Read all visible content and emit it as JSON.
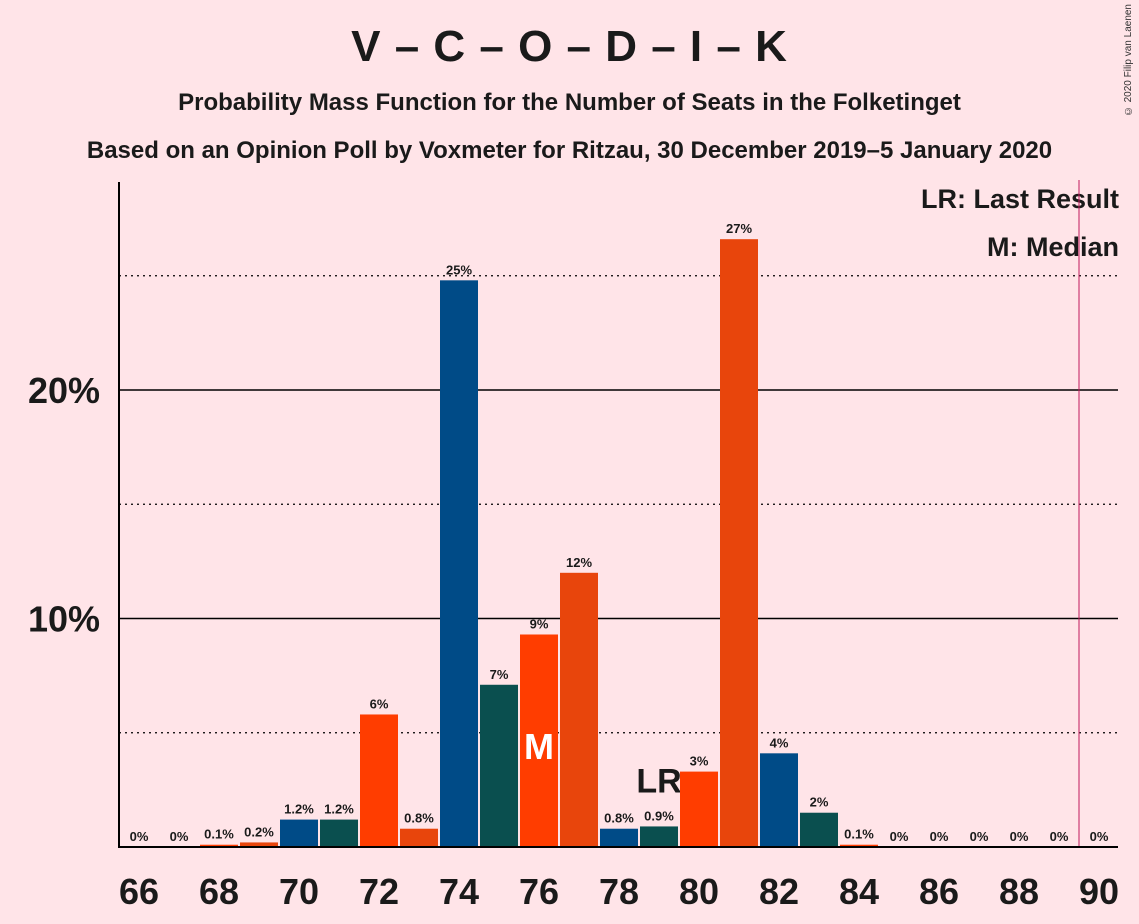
{
  "chart_data": {
    "type": "bar",
    "title": "V – C – O – D – I – K",
    "subtitle_1": "Probability Mass Function for the Number of Seats in the Folketinget",
    "subtitle_2": "Based on an Opinion Poll by Voxmeter for Ritzau, 30 December 2019–5 January 2020",
    "copyright": "© 2020 Filip van Laenen",
    "legend": {
      "last_result": "LR: Last Result",
      "median": "M: Median"
    },
    "seats": [
      66,
      67,
      68,
      69,
      70,
      71,
      72,
      73,
      74,
      75,
      76,
      77,
      78,
      79,
      80,
      81,
      82,
      83,
      84,
      85,
      86,
      87,
      88,
      89,
      90
    ],
    "values": [
      0,
      0,
      0.1,
      0.2,
      1.2,
      1.2,
      5.8,
      0.8,
      24.8,
      7.1,
      9.3,
      12.0,
      0.8,
      0.9,
      3.3,
      26.6,
      4.1,
      1.5,
      0.1,
      0,
      0,
      0,
      0,
      0,
      0
    ],
    "labels": [
      "0%",
      "0%",
      "0.1%",
      "0.2%",
      "1.2%",
      "1.2%",
      "6%",
      "0.8%",
      "25%",
      "7%",
      "9%",
      "12%",
      "0.8%",
      "0.9%",
      "3%",
      "27%",
      "4%",
      "2%",
      "0.1%",
      "0%",
      "0%",
      "0%",
      "0%",
      "0%",
      "0%"
    ],
    "colors": [
      "#004B87",
      "#0A4F4F",
      "#FF3D00",
      "#E8450C",
      "#004B87",
      "#0A4F4F",
      "#FF3D00",
      "#E8450C"
    ],
    "x_tick_labels": [
      "66",
      "68",
      "70",
      "72",
      "74",
      "76",
      "78",
      "80",
      "82",
      "84",
      "86",
      "88",
      "90"
    ],
    "y_tick_labels": [
      "10%",
      "20%"
    ],
    "ylim": [
      0,
      29
    ],
    "median_seat": 76,
    "median_marker": "M",
    "last_result_seat": 79,
    "last_result_marker": "LR",
    "majority_line_seat": 90
  }
}
